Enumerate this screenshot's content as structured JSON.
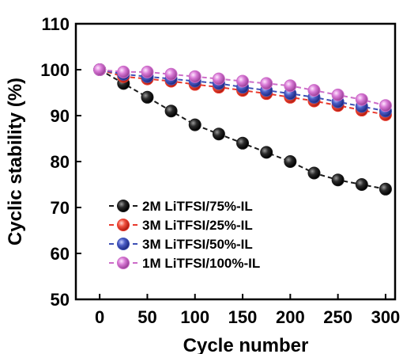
{
  "chart_data": {
    "type": "line",
    "xlabel": "Cycle number",
    "ylabel": "Cyclic stability (%)",
    "xlim": [
      -25,
      310
    ],
    "ylim": [
      50,
      110
    ],
    "xticks": [
      "0",
      "50",
      "100",
      "150",
      "200",
      "250",
      "300"
    ],
    "yticks": [
      "50",
      "60",
      "70",
      "80",
      "90",
      "100",
      "110"
    ],
    "grid": false,
    "legend_position": "bottom-left",
    "x": [
      0,
      25,
      50,
      75,
      100,
      125,
      150,
      175,
      200,
      225,
      250,
      275,
      300
    ],
    "series": [
      {
        "name": "2M LiTFSI/75%-IL",
        "color": "#1a1a1a",
        "values": [
          100,
          97,
          94,
          91,
          88,
          86,
          84,
          82,
          80,
          77.5,
          76,
          75,
          74
        ]
      },
      {
        "name": "3M LiTFSI/25%-IL",
        "color": "#e8392c",
        "values": [
          100,
          98.5,
          98,
          97.5,
          96.8,
          96.2,
          95.5,
          94.8,
          94,
          93.2,
          92.2,
          91.2,
          90.2
        ]
      },
      {
        "name": "3M LiTFSI/50%-IL",
        "color": "#3d4fb5",
        "values": [
          100,
          99,
          98.5,
          98,
          97.5,
          97,
          96.2,
          95.5,
          94.8,
          94,
          93,
          92,
          91
        ]
      },
      {
        "name": "1M LiTFSI/100%-IL",
        "color": "#cc6cc8",
        "values": [
          100,
          99.5,
          99.5,
          99,
          98.5,
          98,
          97.5,
          97,
          96.5,
          95.5,
          94.5,
          93.5,
          92.2
        ]
      }
    ]
  }
}
